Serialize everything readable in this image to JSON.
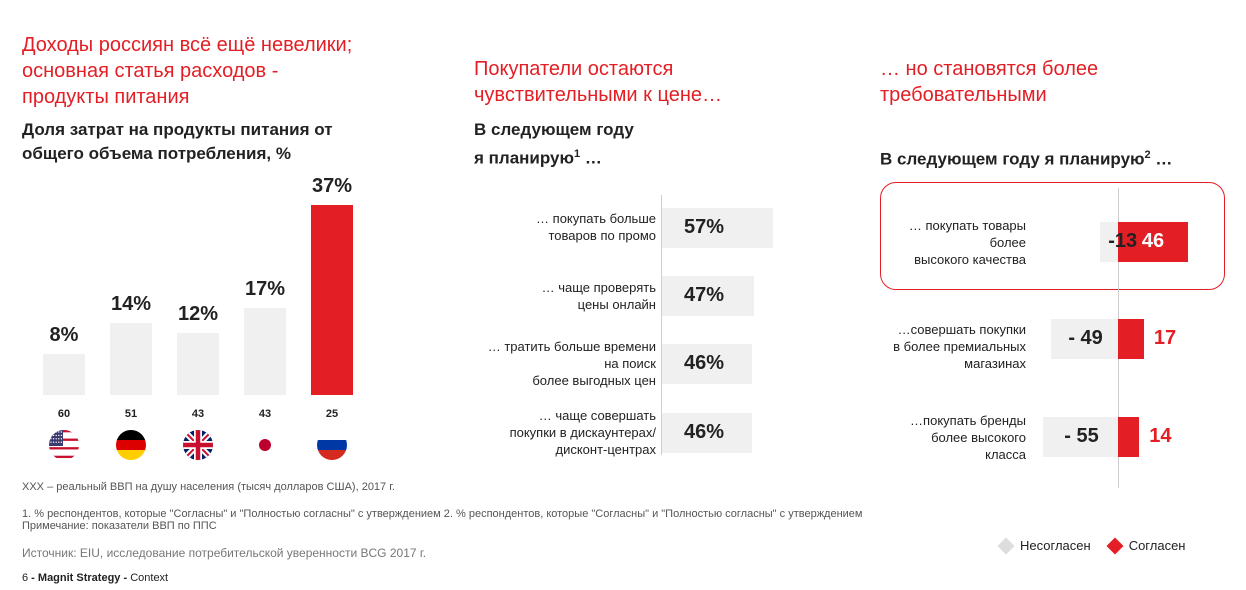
{
  "panels": {
    "left": {
      "title_lines": [
        "Доходы россиян всё ещё невелики;",
        "основная статья расходов -",
        "продукты питания"
      ],
      "subtitle_lines": [
        "Доля затрат на продукты питания от",
        "общего объема потребления, %"
      ]
    },
    "middle": {
      "title_lines": [
        "Покупатели остаются",
        "чувствительными к цене…"
      ],
      "subtitle_line1": "В следующем году",
      "subtitle_line2": "я планирую",
      "subtitle_sup": "1",
      "subtitle_tail": " …"
    },
    "right": {
      "title_lines": [
        "… но становятся более",
        "требовательными"
      ],
      "subtitle": "В следующем году я планирую",
      "subtitle_sup": "2",
      "subtitle_tail": " …"
    }
  },
  "chart_data": [
    {
      "type": "bar",
      "title": "Доля затрат на продукты питания от общего объема потребления, %",
      "categories": [
        "США",
        "Германия",
        "Великобритания",
        "Япония",
        "Россия"
      ],
      "values": [
        8,
        14,
        12,
        17,
        37
      ],
      "value_labels": [
        "8%",
        "14%",
        "12%",
        "17%",
        "37%"
      ],
      "gdp_labels": [
        "60",
        "51",
        "43",
        "43",
        "25"
      ],
      "flags": [
        "us-flag-icon",
        "germany-flag-icon",
        "uk-flag-icon",
        "japan-flag-icon",
        "russia-flag-icon"
      ],
      "colors": [
        "#f0f0f0",
        "#f0f0f0",
        "#f0f0f0",
        "#f0f0f0",
        "#e31e24"
      ],
      "ylim": [
        0,
        37
      ]
    },
    {
      "type": "bar",
      "orientation": "horizontal",
      "title": "В следующем году я планирую …",
      "categories": [
        [
          "… покупать больше",
          "товаров по промо"
        ],
        [
          "… чаще проверять",
          "цены онлайн"
        ],
        [
          "… тратить больше времени",
          "на поиск",
          "более выгодных цен"
        ],
        [
          "… чаще совершать",
          "покупки в дискаунтерах/",
          "дисконт-центрах"
        ]
      ],
      "values": [
        57,
        47,
        46,
        46
      ],
      "value_labels": [
        "57%",
        "47%",
        "46%",
        "46%"
      ],
      "xlim": [
        0,
        57
      ]
    },
    {
      "type": "bar",
      "orientation": "horizontal-diverging",
      "title": "В следующем году я планирую …",
      "categories": [
        [
          "… покупать товары",
          "более",
          "высокого качества"
        ],
        [
          "…совершать покупки",
          "в более премиальных",
          "магазинах"
        ],
        [
          "…покупать бренды",
          "более высокого",
          "класса"
        ]
      ],
      "series": [
        {
          "name": "Несогласен",
          "values": [
            -13,
            -49,
            -55
          ],
          "labels": [
            "-13",
            "- 49",
            "- 55"
          ],
          "color": "#f0f0f0"
        },
        {
          "name": "Согласен",
          "values": [
            46,
            17,
            14
          ],
          "labels": [
            "46",
            "17",
            "14"
          ],
          "color": "#e31e24"
        }
      ],
      "highlight_index": 0,
      "legend": "bottom-right"
    }
  ],
  "footer": {
    "gdp_note": "XXX – реальный ВВП на душу населения (тысяч долларов США), 2017 г.",
    "note1": "1. % респондентов, которые \"Согласны\" и \"Полностью согласны\" с утверждением 2.  % респондентов, которые \"Согласны\" и \"Полностью согласны\" с утверждением",
    "note2": "Примечание: показатели ВВП по ППС",
    "source": "Источник: EIU, исследование потребительской уверенности BCG 2017 г.",
    "page_number": "6",
    "sep1": " - ",
    "brand": "Magnit Strategy",
    "sep2": " - ",
    "section": "Context"
  },
  "legend": {
    "disagree": "Несогласен",
    "agree": "Согласен",
    "disagree_color": "#dddddd",
    "agree_color": "#e31e24"
  }
}
